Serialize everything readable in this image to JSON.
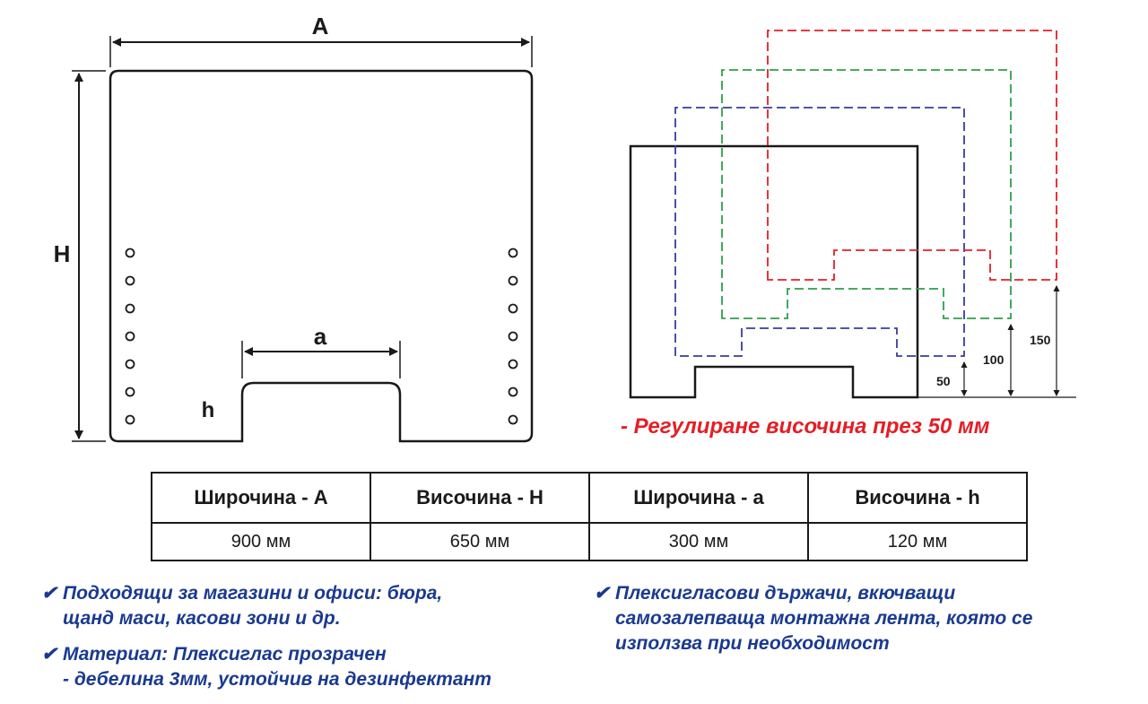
{
  "diagram": {
    "label_width": "A",
    "label_height": "H",
    "label_cutout_width": "a",
    "label_cutout_height": "h",
    "heights": [
      "50",
      "100",
      "150"
    ],
    "colors": {
      "outline": "#1a1a1a",
      "blue": "#3b3b9e",
      "green": "#2f9e49",
      "red": "#e41e25"
    }
  },
  "caption": "- Регулиране височина през 50 мм",
  "table": {
    "headers": [
      "Широчина - A",
      "Височина - H",
      "Широчина - a",
      "Височина - h"
    ],
    "values": [
      "900 мм",
      "650 мм",
      "300 мм",
      "120 мм"
    ]
  },
  "notes": {
    "check_icon": "✔",
    "n1_l1": "Подходящи за магазини и офиси: бюра,",
    "n1_l2": "щанд маси, касови зони и др.",
    "n2_l1": "Материал: Плексиглас прозрачен",
    "n2_l2": "- дебелина 3мм, устойчив на дезинфектант",
    "n3_l1": "Плексигласови държачи, вкючващи",
    "n3_l2": "самозалепваща монтажна лента, която се",
    "n3_l3": "използва при необходимост"
  }
}
